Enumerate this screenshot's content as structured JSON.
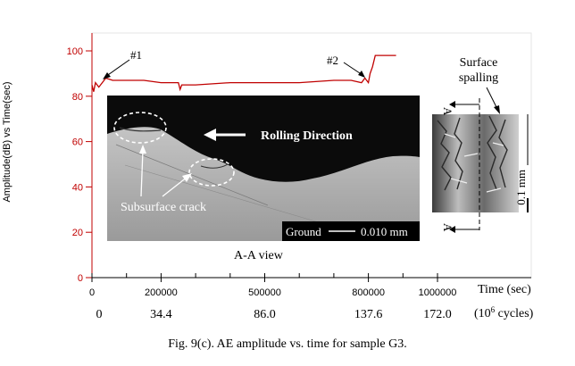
{
  "chart_data": {
    "type": "line",
    "ylabel": "Amplitude(dB) vs Time(sec)",
    "xlabel": "Time (sec)",
    "xlabel2": "(10",
    "xlabel2_sup": "6",
    "xlabel2_end": " cycles)",
    "ylim": [
      0,
      100
    ],
    "xlim": [
      0,
      1000000
    ],
    "y_ticks": [
      "100",
      "80",
      "60",
      "40",
      "20",
      "0"
    ],
    "x_ticks": [
      "0",
      "200000",
      "500000",
      "800000",
      "1000000"
    ],
    "x_ticks2": [
      "0",
      "34.4",
      "86.0",
      "137.6",
      "172.0"
    ],
    "series_color": "#c00000",
    "series": [
      {
        "x": [
          0,
          5000,
          10000,
          20000,
          40000,
          60000,
          100000,
          150000,
          200000,
          250000,
          255000,
          260000,
          300000,
          400000,
          500000,
          600000,
          700000,
          750000,
          780000,
          790000,
          800000,
          805000,
          812000,
          820000,
          830000,
          860000,
          880000
        ],
        "values": [
          85,
          82,
          86,
          84,
          88,
          87,
          87,
          87,
          86,
          86,
          83,
          85,
          85,
          86,
          86,
          86,
          87,
          87,
          86,
          88,
          86,
          90,
          93,
          98,
          98,
          98,
          98
        ]
      }
    ],
    "annotations": [
      "#1",
      "#2"
    ]
  },
  "inset_left": {
    "labels": [
      "Rolling Direction",
      "Subsurface crack",
      "Ground",
      "0.010 mm",
      "A-A view"
    ]
  },
  "inset_right": {
    "labels": [
      "Surface",
      "spalling",
      "A",
      "A",
      "0.1 mm"
    ]
  },
  "caption": "Fig. 9(c).  AE amplitude vs. time for sample G3."
}
